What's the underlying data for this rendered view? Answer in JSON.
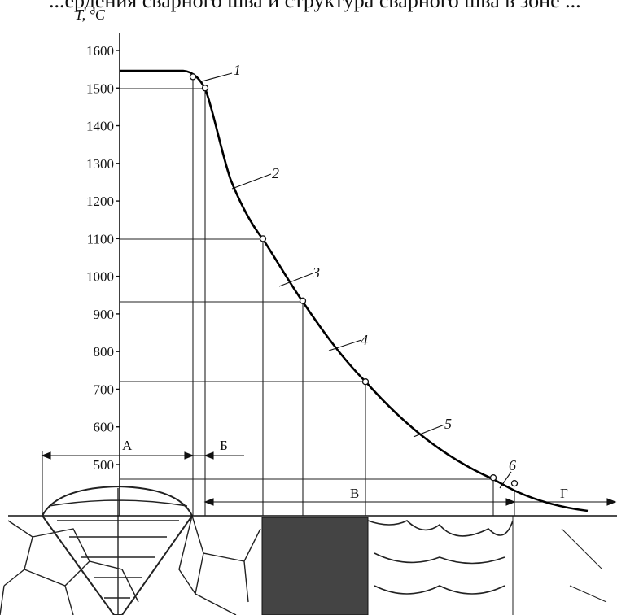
{
  "caption_fragment": "...ердения сварного шва и структура сварного шва в зоне ...",
  "axis": {
    "ylabel": "T, °C",
    "ticks": [
      "1600",
      "1500",
      "1400",
      "1300",
      "1200",
      "1100",
      "1000",
      "900",
      "800",
      "700",
      "600",
      "500"
    ]
  },
  "curve_labels": [
    "1",
    "2",
    "3",
    "4",
    "5",
    "6"
  ],
  "zones": [
    "А",
    "Б",
    "В",
    "Г"
  ],
  "chart_data": {
    "type": "line",
    "ylabel": "T, °C",
    "ylim": [
      430,
      1640
    ],
    "series": [
      {
        "values": [
          1550,
          1530,
          1500,
          1100,
          935,
          720,
          465,
          450
        ]
      }
    ],
    "marked_points_temperature": [
      1530,
      1500,
      1100,
      935,
      720,
      465,
      450
    ]
  }
}
